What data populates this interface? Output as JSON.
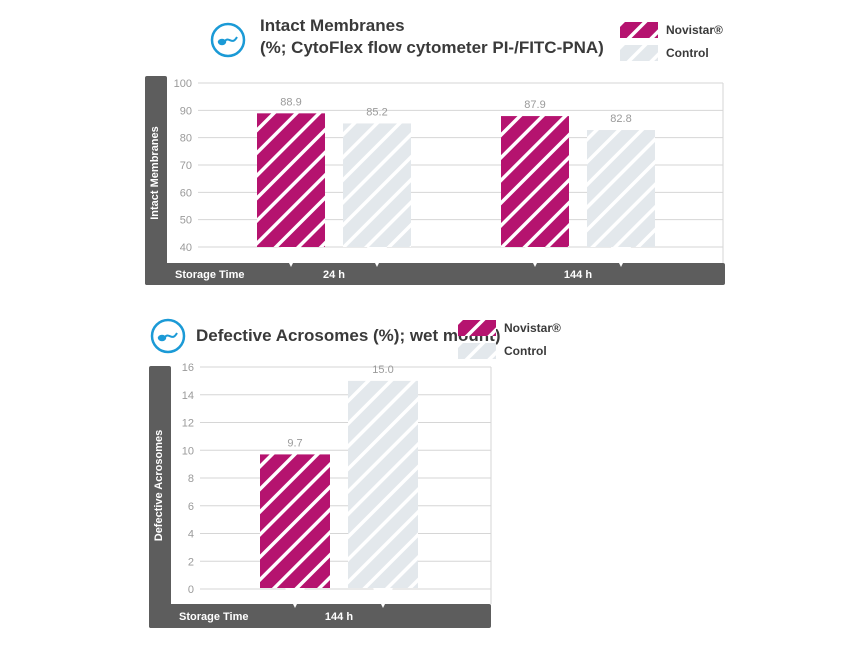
{
  "chart_data": [
    {
      "type": "bar",
      "title": "Intact Membranes",
      "subtitle": "(%; CytoFlex flow cytometer PI-/FITC-PNA)",
      "ylabel": "Intact Membranes",
      "xlabel": "Storage Time",
      "categories": [
        "24 h",
        "144 h"
      ],
      "series": [
        {
          "name": "Novistar®",
          "values": [
            88.9,
            87.9
          ]
        },
        {
          "name": "Control",
          "values": [
            85.2,
            82.8
          ]
        }
      ],
      "ylim": [
        40,
        100
      ],
      "yticks": [
        40,
        50,
        60,
        70,
        80,
        90,
        100
      ],
      "data_labels": [
        [
          "88.9",
          "87.9"
        ],
        [
          "85.2",
          "82.8"
        ]
      ],
      "grid": true,
      "legend_position": "top-right"
    },
    {
      "type": "bar",
      "title": "Defective Acrosomes (%); wet mount)",
      "ylabel": "Defective Acrosomes",
      "xlabel": "Storage Time",
      "categories": [
        "144 h"
      ],
      "series": [
        {
          "name": "Novistar®",
          "values": [
            9.7
          ]
        },
        {
          "name": "Control",
          "values": [
            15.0
          ]
        }
      ],
      "ylim": [
        0,
        16
      ],
      "yticks": [
        0,
        2,
        4,
        6,
        8,
        10,
        12,
        14,
        16
      ],
      "data_labels": [
        [
          "9.7"
        ],
        [
          "15.0"
        ]
      ],
      "grid": true,
      "legend_position": "top-right"
    }
  ],
  "legend": {
    "novistar_label": "Novistar®",
    "control_label": "Control"
  },
  "colors": {
    "novistar": "#b5136f",
    "control": "#e3e8ec",
    "axis_bar": "#5d5d5d",
    "grid": "#d6d6d6",
    "tick_text": "#9a9a9a",
    "icon": "#1b9ad6",
    "title_text": "#3a3a3a"
  },
  "icons": [
    "sperm-cell-icon",
    "sperm-cell-icon"
  ]
}
